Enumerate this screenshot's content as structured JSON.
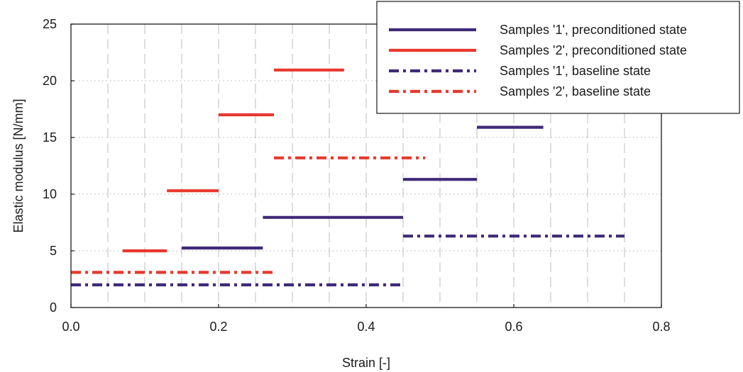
{
  "chart_data": {
    "type": "line",
    "xlabel": "Strain [-]",
    "ylabel": "Elastic modulus [N/mm]",
    "xlim": [
      0,
      0.8
    ],
    "ylim": [
      0,
      25
    ],
    "xticks": [
      "0.0",
      "0.2",
      "0.4",
      "0.6",
      "0.8"
    ],
    "xtick_values": [
      0,
      0.2,
      0.4,
      0.6,
      0.8
    ],
    "yticks": [
      "0",
      "5",
      "10",
      "15",
      "20",
      "25"
    ],
    "ytick_values": [
      0,
      5,
      10,
      15,
      20,
      25
    ],
    "grid": {
      "vertical_dashed": [
        0.05,
        0.1,
        0.15,
        0.2,
        0.25,
        0.3,
        0.35,
        0.4,
        0.45,
        0.5,
        0.55,
        0.6,
        0.65,
        0.7,
        0.75
      ],
      "horizontal_dotted": [
        5,
        10,
        15,
        20
      ]
    },
    "legend_position": "top-right",
    "series": [
      {
        "name": "Samples '1', preconditioned state",
        "color": "#3f2a78",
        "style": "solid",
        "segments": [
          {
            "x": [
              0.15,
              0.26
            ],
            "y": 5.25
          },
          {
            "x": [
              0.26,
              0.45
            ],
            "y": 7.95
          },
          {
            "x": [
              0.45,
              0.55
            ],
            "y": 11.3
          },
          {
            "x": [
              0.55,
              0.64
            ],
            "y": 15.9
          }
        ]
      },
      {
        "name": "Samples '2', preconditioned state",
        "color": "#e8382e",
        "style": "solid",
        "segments": [
          {
            "x": [
              0.07,
              0.13
            ],
            "y": 5.0
          },
          {
            "x": [
              0.13,
              0.2
            ],
            "y": 10.3
          },
          {
            "x": [
              0.2,
              0.275
            ],
            "y": 17.0
          },
          {
            "x": [
              0.275,
              0.37
            ],
            "y": 20.95
          }
        ]
      },
      {
        "name": "Samples '1', baseline state",
        "color": "#3f2a78",
        "style": "dashdot",
        "segments": [
          {
            "x": [
              0.0,
              0.45
            ],
            "y": 2.0
          },
          {
            "x": [
              0.45,
              0.75
            ],
            "y": 6.3
          }
        ]
      },
      {
        "name": "Samples '2', baseline state",
        "color": "#e8382e",
        "style": "dashdot",
        "segments": [
          {
            "x": [
              0.0,
              0.275
            ],
            "y": 3.1
          },
          {
            "x": [
              0.275,
              0.48
            ],
            "y": 13.2
          }
        ]
      }
    ]
  }
}
